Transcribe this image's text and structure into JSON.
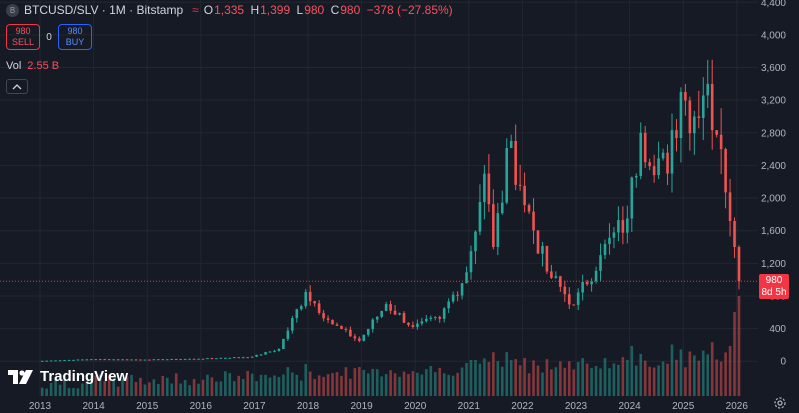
{
  "header": {
    "symbol_icon": "B",
    "title": "BTCUSD/SLV · 1M · Bitstamp",
    "market_icon": "wave-icon",
    "ohlc": [
      {
        "label": "O",
        "value": "1,335"
      },
      {
        "label": "H",
        "value": "1,399"
      },
      {
        "label": "L",
        "value": "980"
      },
      {
        "label": "C",
        "value": "980"
      }
    ],
    "change": "−378 (−27.85%)"
  },
  "trade": {
    "sell_price": "980",
    "sell_label": "SELL",
    "spread": "0",
    "buy_price": "980",
    "buy_label": "BUY"
  },
  "volume": {
    "label": "Vol",
    "value": "2.55 B"
  },
  "logo": {
    "text": "TradingView"
  },
  "last_price": {
    "value": "980",
    "countdown": "8d 5h"
  },
  "colors": {
    "up": "#26a69a",
    "down": "#ef5350",
    "background": "#161a25",
    "grid": "#22262f"
  },
  "chart_data": {
    "type": "candlestick",
    "x_axis": {
      "labels": [
        "2013",
        "2014",
        "2015",
        "2016",
        "2017",
        "2018",
        "2019",
        "2020",
        "2021",
        "2022",
        "2023",
        "2024",
        "2025",
        "2026"
      ]
    },
    "y_axis": {
      "labels": [
        "0",
        "400",
        "800",
        "1,200",
        "1,600",
        "2,000",
        "2,400",
        "2,800",
        "3,200",
        "3,600",
        "4,000",
        "4,400"
      ],
      "ylim": [
        -400,
        4450
      ]
    },
    "last_price": 980,
    "monthly_close_approx": [
      {
        "date": "2013-01",
        "close": 5
      },
      {
        "date": "2013-12",
        "close": 25
      },
      {
        "date": "2014-12",
        "close": 20
      },
      {
        "date": "2015-12",
        "close": 30
      },
      {
        "date": "2016-12",
        "close": 55
      },
      {
        "date": "2017-06",
        "close": 150
      },
      {
        "date": "2017-12",
        "close": 850
      },
      {
        "date": "2018-06",
        "close": 450
      },
      {
        "date": "2018-12",
        "close": 250
      },
      {
        "date": "2019-06",
        "close": 700
      },
      {
        "date": "2019-12",
        "close": 420
      },
      {
        "date": "2020-06",
        "close": 520
      },
      {
        "date": "2020-12",
        "close": 1090
      },
      {
        "date": "2021-04",
        "close": 2300
      },
      {
        "date": "2021-06",
        "close": 1400
      },
      {
        "date": "2021-10",
        "close": 2700
      },
      {
        "date": "2021-12",
        "close": 2150
      },
      {
        "date": "2022-06",
        "close": 1100
      },
      {
        "date": "2022-12",
        "close": 690
      },
      {
        "date": "2023-06",
        "close": 1300
      },
      {
        "date": "2023-12",
        "close": 1750
      },
      {
        "date": "2024-03",
        "close": 2800
      },
      {
        "date": "2024-09",
        "close": 2300
      },
      {
        "date": "2024-12",
        "close": 3300
      },
      {
        "date": "2025-03",
        "close": 3000
      },
      {
        "date": "2025-06",
        "close": 3400
      },
      {
        "date": "2025-09",
        "close": 2600
      },
      {
        "date": "2025-12",
        "close": 1400
      },
      {
        "date": "2026-01",
        "close": 980
      }
    ]
  }
}
